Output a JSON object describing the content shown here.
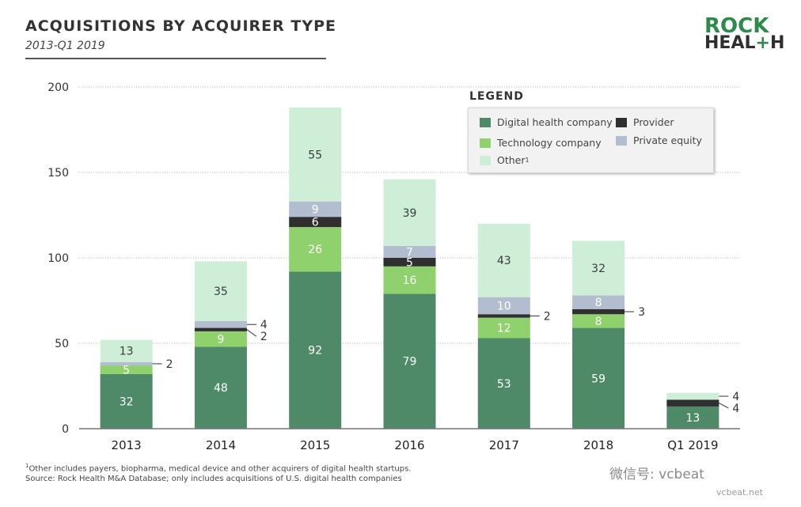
{
  "header": {
    "title": "ACQUISITIONS BY ACQUIRER TYPE",
    "subtitle": "2013-Q1 2019"
  },
  "logo": {
    "line1": "ROCK",
    "line2_a": "HEAL",
    "line2_plus": "+",
    "line2_b": "H"
  },
  "legend": {
    "title": "LEGEND",
    "items": {
      "digital": "Digital health company",
      "provider": "Provider",
      "tech": "Technology company",
      "private": "Private equity",
      "other": "Other",
      "other_sup": "1"
    }
  },
  "footnotes": {
    "note1_sup": "1",
    "note1": "Other includes payers, biopharma, medical device and other acquirers of digital health startups.",
    "note2": "Source: Rock Health M&A Database; only includes acquisitions of U.S. digital health companies"
  },
  "watermark": {
    "text": "微信号: vcbeat",
    "url": "vcbeat.net"
  },
  "colors": {
    "digital": "#4f8a68",
    "tech": "#8fd16c",
    "provider": "#2f2f2f",
    "private": "#b3bdd0",
    "other": "#cfeed8"
  },
  "chart_data": {
    "type": "bar",
    "stacked": true,
    "categories": [
      "2013",
      "2014",
      "2015",
      "2016",
      "2017",
      "2018",
      "Q1 2019"
    ],
    "series": [
      {
        "name": "Digital health company",
        "key": "digital",
        "values": [
          32,
          48,
          92,
          79,
          53,
          59,
          13
        ]
      },
      {
        "name": "Technology company",
        "key": "tech",
        "values": [
          5,
          9,
          26,
          16,
          12,
          8,
          0
        ]
      },
      {
        "name": "Provider",
        "key": "provider",
        "values": [
          0,
          2,
          6,
          5,
          2,
          3,
          4
        ]
      },
      {
        "name": "Private equity",
        "key": "private",
        "values": [
          2,
          4,
          9,
          7,
          10,
          8,
          0
        ]
      },
      {
        "name": "Other",
        "key": "other",
        "values": [
          13,
          35,
          55,
          39,
          43,
          32,
          4
        ]
      }
    ],
    "data_labels": [
      {
        "category": "2013",
        "digital": "32",
        "tech": "5",
        "private_callout": "2",
        "other": "13"
      },
      {
        "category": "2014",
        "digital": "48",
        "tech": "9",
        "provider_callout": "2",
        "private_callout": "4",
        "other": "35"
      },
      {
        "category": "2015",
        "digital": "92",
        "tech": "26",
        "provider": "6",
        "private": "9",
        "other": "55"
      },
      {
        "category": "2016",
        "digital": "79",
        "tech": "16",
        "provider": "5",
        "private": "7",
        "other": "39"
      },
      {
        "category": "2017",
        "digital": "53",
        "tech": "12",
        "provider_callout": "2",
        "private": "10",
        "other": "43"
      },
      {
        "category": "2018",
        "digital": "59",
        "tech": "8",
        "provider_callout": "3",
        "private": "8",
        "other": "32"
      },
      {
        "category": "Q1 2019",
        "digital": "13",
        "provider_callout": "4",
        "other_callout": "4"
      }
    ],
    "yticks": [
      "0",
      "50",
      "100",
      "150",
      "200"
    ],
    "ylim": [
      0,
      200
    ],
    "grid": true
  }
}
